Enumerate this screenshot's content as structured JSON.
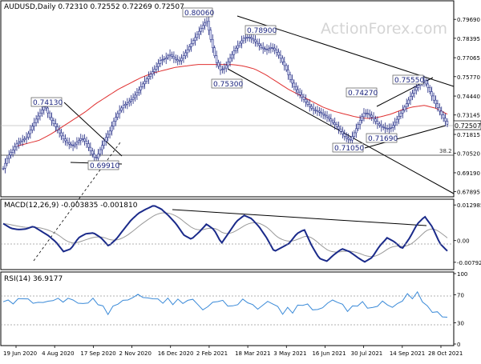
{
  "price_panel": {
    "header": "AUDUSD,Daily 0.72310 0.72552 0.72269 0.72507",
    "watermark": "ActionForex.com",
    "fib_label": "38.2",
    "current_price": "0.72507",
    "y_ticks": [
      "0.79690",
      "0.78395",
      "0.77065",
      "0.75770",
      "0.74440",
      "0.73145",
      "0.71815",
      "0.70520",
      "0.69190",
      "0.67895"
    ],
    "annotations": [
      "0.80060",
      "0.78900",
      "0.75300",
      "0.74130",
      "0.69910",
      "0.75550",
      "0.74270",
      "0.71690",
      "0.71050"
    ]
  },
  "macd_panel": {
    "header": "MACD(12,26,9) -0.003835 -0.001810",
    "y_ticks": [
      "0.012985",
      "0.00",
      "-0.007921"
    ]
  },
  "rsi_panel": {
    "header": "RSI(14) 36.9177",
    "y_ticks": [
      "100",
      "70",
      "30",
      "0"
    ]
  },
  "x_ticks": [
    "19 Jun 2020",
    "4 Aug 2020",
    "17 Sep 2020",
    "2 Nov 2020",
    "16 Dec 2020",
    "2 Feb 2021",
    "18 Mar 2021",
    "3 May 2021",
    "16 Jun 2021",
    "30 Jul 2021",
    "14 Sep 2021",
    "28 Oct 2021"
  ],
  "chart_data": {
    "type": "line",
    "symbol": "AUDUSD",
    "timeframe": "Daily",
    "ohlc_last": {
      "open": 0.7231,
      "high": 0.72552,
      "low": 0.72269,
      "close": 0.72507
    },
    "price_range": [
      0.676,
      0.8085
    ],
    "close_series": [
      0.695,
      0.703,
      0.707,
      0.712,
      0.714,
      0.716,
      0.722,
      0.728,
      0.733,
      0.738,
      0.73,
      0.725,
      0.72,
      0.715,
      0.712,
      0.71,
      0.713,
      0.716,
      0.712,
      0.706,
      0.701,
      0.708,
      0.715,
      0.72,
      0.728,
      0.734,
      0.738,
      0.74,
      0.743,
      0.747,
      0.752,
      0.756,
      0.76,
      0.764,
      0.769,
      0.77,
      0.773,
      0.77,
      0.768,
      0.772,
      0.777,
      0.782,
      0.787,
      0.792,
      0.796,
      0.781,
      0.768,
      0.762,
      0.764,
      0.77,
      0.776,
      0.78,
      0.784,
      0.785,
      0.783,
      0.78,
      0.777,
      0.776,
      0.778,
      0.775,
      0.77,
      0.764,
      0.756,
      0.75,
      0.746,
      0.742,
      0.738,
      0.735,
      0.734,
      0.732,
      0.73,
      0.727,
      0.724,
      0.72,
      0.716,
      0.714,
      0.72,
      0.727,
      0.733,
      0.732,
      0.729,
      0.725,
      0.723,
      0.722,
      0.723,
      0.728,
      0.733,
      0.738,
      0.744,
      0.749,
      0.753,
      0.755,
      0.749,
      0.742,
      0.736,
      0.73,
      0.7251
    ],
    "sma55": [
      0.71,
      0.712,
      0.714,
      0.718,
      0.723,
      0.728,
      0.733,
      0.739,
      0.744,
      0.749,
      0.753,
      0.757,
      0.76,
      0.762,
      0.764,
      0.765,
      0.766,
      0.766,
      0.766,
      0.766,
      0.765,
      0.763,
      0.759,
      0.754,
      0.749,
      0.745,
      0.741,
      0.737,
      0.734,
      0.732,
      0.73,
      0.729,
      0.73,
      0.732,
      0.735,
      0.737,
      0.738,
      0.736,
      0.732
    ],
    "macd_values": [
      0.0062,
      0.0045,
      0.004,
      0.0042,
      0.0052,
      0.0035,
      0.0018,
      -0.0005,
      -0.004,
      -0.003,
      0.001,
      0.0025,
      0.0028,
      0.001,
      -0.002,
      0.0005,
      0.004,
      0.0075,
      0.01,
      0.0115,
      0.0128,
      0.0115,
      0.009,
      0.006,
      0.002,
      0.0005,
      0.003,
      0.006,
      0.004,
      -0.001,
      0.003,
      0.007,
      0.0092,
      0.008,
      0.005,
      0.001,
      -0.004,
      -0.0025,
      -0.001,
      0.0025,
      0.004,
      -0.002,
      -0.0065,
      -0.0075,
      -0.005,
      -0.003,
      -0.004,
      -0.006,
      -0.0078,
      -0.0062,
      -0.002,
      0.001,
      -0.0005,
      -0.003,
      0.001,
      0.006,
      0.0088,
      0.005,
      -0.001,
      -0.0038
    ],
    "macd_range": [
      -0.01,
      0.0145
    ],
    "rsi_values": [
      60,
      62,
      58,
      63,
      66,
      62,
      60,
      57,
      61,
      59,
      63,
      64,
      60,
      65,
      62,
      59,
      56,
      60,
      63,
      58,
      52,
      44,
      52,
      58,
      61,
      63,
      66,
      70,
      67,
      64,
      66,
      62,
      60,
      63,
      58,
      62,
      59,
      61,
      64,
      56,
      48,
      54,
      58,
      62,
      60,
      56,
      52,
      58,
      62,
      60,
      55,
      50,
      55,
      60,
      58,
      52,
      44,
      50,
      46,
      53,
      57,
      55,
      50,
      48,
      52,
      58,
      62,
      60,
      55,
      48,
      52,
      56,
      58,
      53,
      50,
      55,
      60,
      56,
      52,
      57,
      62,
      70,
      66,
      72,
      62,
      52,
      47,
      44,
      40,
      37
    ],
    "rsi_range": [
      0,
      100
    ]
  }
}
